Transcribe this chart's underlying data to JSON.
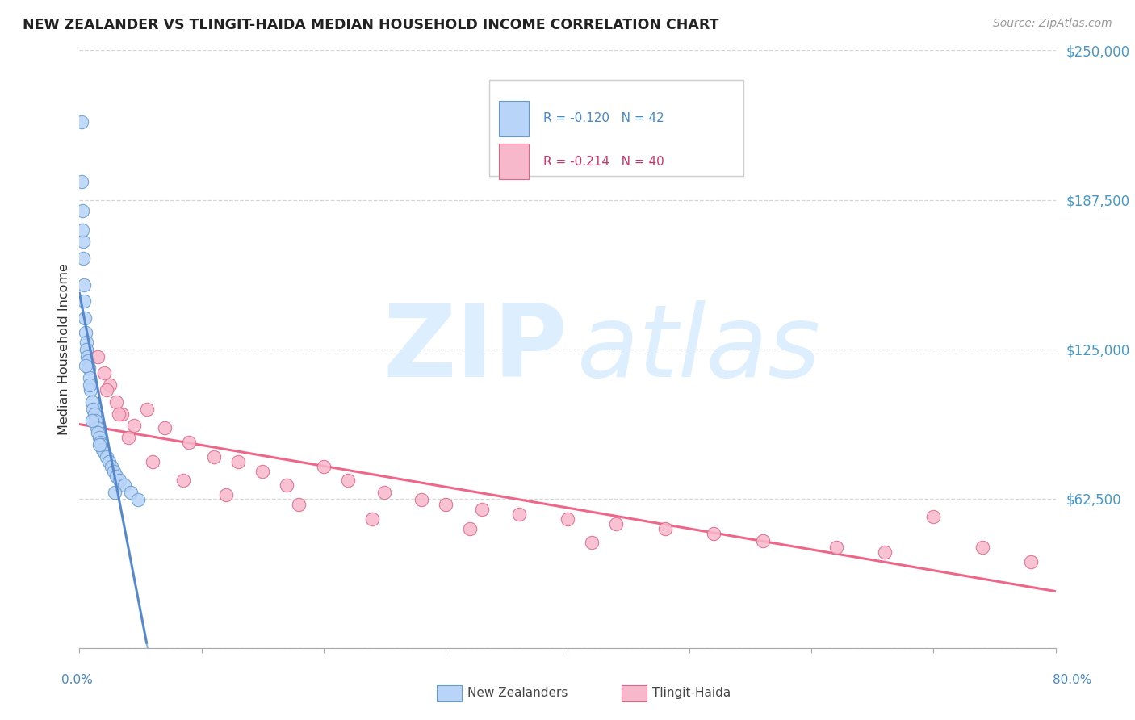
{
  "title": "NEW ZEALANDER VS TLINGIT-HAIDA MEDIAN HOUSEHOLD INCOME CORRELATION CHART",
  "source": "Source: ZipAtlas.com",
  "ylabel": "Median Household Income",
  "xmin": 0.0,
  "xmax": 80.0,
  "ymin": 0,
  "ymax": 250000,
  "yticks": [
    0,
    62500,
    125000,
    187500,
    250000
  ],
  "ytick_labels": [
    "",
    "$62,500",
    "$125,000",
    "$187,500",
    "$250,000"
  ],
  "legend_r1": "R = -0.120",
  "legend_n1": "N = 42",
  "legend_r2": "R = -0.214",
  "legend_n2": "N = 40",
  "color_blue_fill": "#b8d4f8",
  "color_blue_edge": "#6699cc",
  "color_blue_line": "#5588cc",
  "color_pink_fill": "#f8b8cc",
  "color_pink_edge": "#dd6688",
  "color_pink_line": "#ee6688",
  "color_blue_text": "#4488cc",
  "color_pink_text": "#cc3366",
  "color_right_labels": "#4499cc",
  "background_color": "#ffffff",
  "grid_color": "#cccccc",
  "blue_x": [
    0.15,
    0.18,
    0.25,
    0.28,
    0.32,
    0.35,
    0.4,
    0.45,
    0.5,
    0.55,
    0.6,
    0.65,
    0.7,
    0.75,
    0.8,
    0.9,
    1.0,
    1.1,
    1.2,
    1.3,
    1.4,
    1.5,
    1.6,
    1.7,
    1.8,
    1.9,
    2.0,
    2.2,
    2.4,
    2.6,
    2.8,
    3.0,
    3.3,
    3.7,
    4.2,
    4.8,
    0.22,
    0.48,
    0.85,
    1.05,
    1.65,
    2.9
  ],
  "blue_y": [
    220000,
    195000,
    183000,
    170000,
    163000,
    152000,
    145000,
    138000,
    132000,
    128000,
    125000,
    122000,
    120000,
    117000,
    113000,
    108000,
    103000,
    100000,
    98000,
    95000,
    92000,
    90000,
    88000,
    86000,
    85000,
    83000,
    82000,
    80000,
    78000,
    76000,
    74000,
    72000,
    70000,
    68000,
    65000,
    62000,
    175000,
    118000,
    110000,
    95000,
    85000,
    65000
  ],
  "pink_x": [
    1.5,
    2.0,
    2.5,
    3.0,
    3.5,
    4.5,
    5.5,
    7.0,
    9.0,
    11.0,
    13.0,
    15.0,
    17.0,
    20.0,
    22.0,
    25.0,
    28.0,
    30.0,
    33.0,
    36.0,
    40.0,
    44.0,
    48.0,
    52.0,
    56.0,
    62.0,
    66.0,
    70.0,
    74.0,
    78.0,
    2.2,
    3.2,
    4.0,
    6.0,
    8.5,
    12.0,
    18.0,
    24.0,
    32.0,
    42.0
  ],
  "pink_y": [
    122000,
    115000,
    110000,
    103000,
    98000,
    93000,
    100000,
    92000,
    86000,
    80000,
    78000,
    74000,
    68000,
    76000,
    70000,
    65000,
    62000,
    60000,
    58000,
    56000,
    54000,
    52000,
    50000,
    48000,
    45000,
    42000,
    40000,
    55000,
    42000,
    36000,
    108000,
    98000,
    88000,
    78000,
    70000,
    64000,
    60000,
    54000,
    50000,
    44000
  ]
}
